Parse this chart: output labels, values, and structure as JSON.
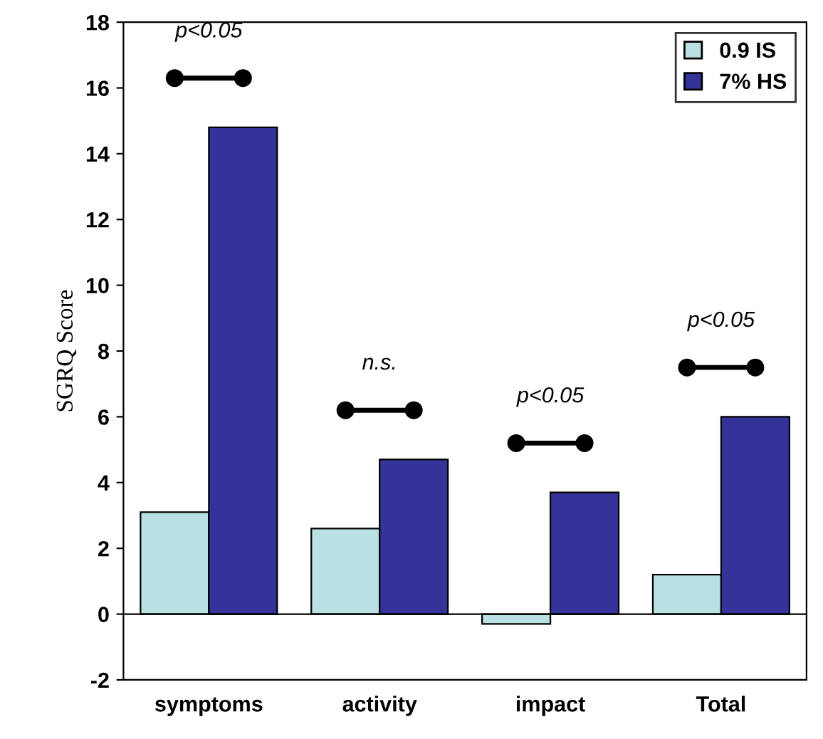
{
  "chart_data": {
    "type": "bar",
    "ylabel": "SGRQ Score",
    "categories": [
      "symptoms",
      "activity",
      "impact",
      "Total"
    ],
    "series": [
      {
        "name": "0.9 IS",
        "color": "#b9e0e3",
        "values": [
          3.1,
          2.6,
          -0.3,
          1.2
        ]
      },
      {
        "name": "7% HS",
        "color": "#333399",
        "values": [
          14.8,
          4.7,
          3.7,
          6.0
        ]
      }
    ],
    "ylim": [
      -2,
      18
    ],
    "yticks": [
      -2,
      0,
      2,
      4,
      6,
      8,
      10,
      12,
      14,
      16,
      18
    ],
    "grid": false,
    "legend": "top right",
    "ref_lines": [
      {
        "axis": "y",
        "value": 0,
        "color": "#000000"
      }
    ],
    "annotations": [
      "p<0.05",
      "n.s.",
      "p<0.05",
      "p<0.05"
    ]
  }
}
